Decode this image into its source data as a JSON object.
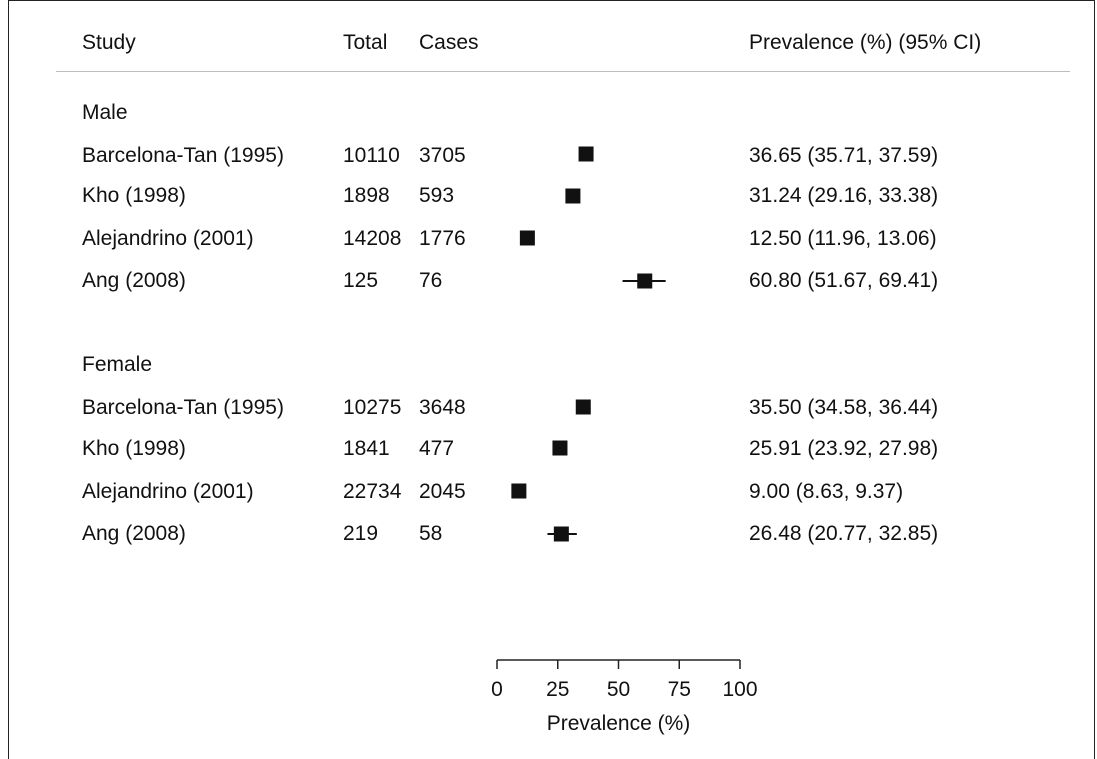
{
  "header": {
    "study": "Study",
    "total": "Total",
    "cases": "Cases",
    "prevalence": "Prevalence (%) (95% CI)"
  },
  "groups": [
    {
      "label": "Male",
      "rows": [
        {
          "study": "Barcelona-Tan (1995)",
          "total": "10110",
          "cases": "3705",
          "ci_text": "36.65 (35.71, 37.59)"
        },
        {
          "study": "Kho (1998)",
          "total": "1898",
          "cases": "593",
          "ci_text": "31.24 (29.16, 33.38)"
        },
        {
          "study": "Alejandrino (2001)",
          "total": "14208",
          "cases": "1776",
          "ci_text": "12.50 (11.96, 13.06)"
        },
        {
          "study": "Ang (2008)",
          "total": "125",
          "cases": "76",
          "ci_text": "60.80 (51.67, 69.41)"
        }
      ]
    },
    {
      "label": "Female",
      "rows": [
        {
          "study": "Barcelona-Tan (1995)",
          "total": "10275",
          "cases": "3648",
          "ci_text": "35.50 (34.58, 36.44)"
        },
        {
          "study": "Kho (1998)",
          "total": "1841",
          "cases": "477",
          "ci_text": "25.91 (23.92, 27.98)"
        },
        {
          "study": "Alejandrino (2001)",
          "total": "22734",
          "cases": "2045",
          "ci_text": "9.00 (8.63, 9.37)"
        },
        {
          "study": "Ang (2008)",
          "total": "219",
          "cases": "58",
          "ci_text": "26.48 (20.77, 32.85)"
        }
      ]
    }
  ],
  "chart_data": {
    "type": "scatter",
    "title": "",
    "xlabel": "Prevalence (%)",
    "ylabel": "",
    "xlim": [
      0,
      100
    ],
    "xticks": [
      0,
      25,
      50,
      75,
      100
    ],
    "grid": false,
    "marker_color": "#111111",
    "series": [
      {
        "name": "Male",
        "points": [
          {
            "label": "Barcelona-Tan (1995)",
            "est": 36.65,
            "lo": 35.71,
            "hi": 37.59
          },
          {
            "label": "Kho (1998)",
            "est": 31.24,
            "lo": 29.16,
            "hi": 33.38
          },
          {
            "label": "Alejandrino (2001)",
            "est": 12.5,
            "lo": 11.96,
            "hi": 13.06
          },
          {
            "label": "Ang (2008)",
            "est": 60.8,
            "lo": 51.67,
            "hi": 69.41
          }
        ]
      },
      {
        "name": "Female",
        "points": [
          {
            "label": "Barcelona-Tan (1995)",
            "est": 35.5,
            "lo": 34.58,
            "hi": 36.44
          },
          {
            "label": "Kho (1998)",
            "est": 25.91,
            "lo": 23.92,
            "hi": 27.98
          },
          {
            "label": "Alejandrino (2001)",
            "est": 9.0,
            "lo": 8.63,
            "hi": 9.37
          },
          {
            "label": "Ang (2008)",
            "est": 26.48,
            "lo": 20.77,
            "hi": 32.85
          }
        ]
      }
    ]
  }
}
